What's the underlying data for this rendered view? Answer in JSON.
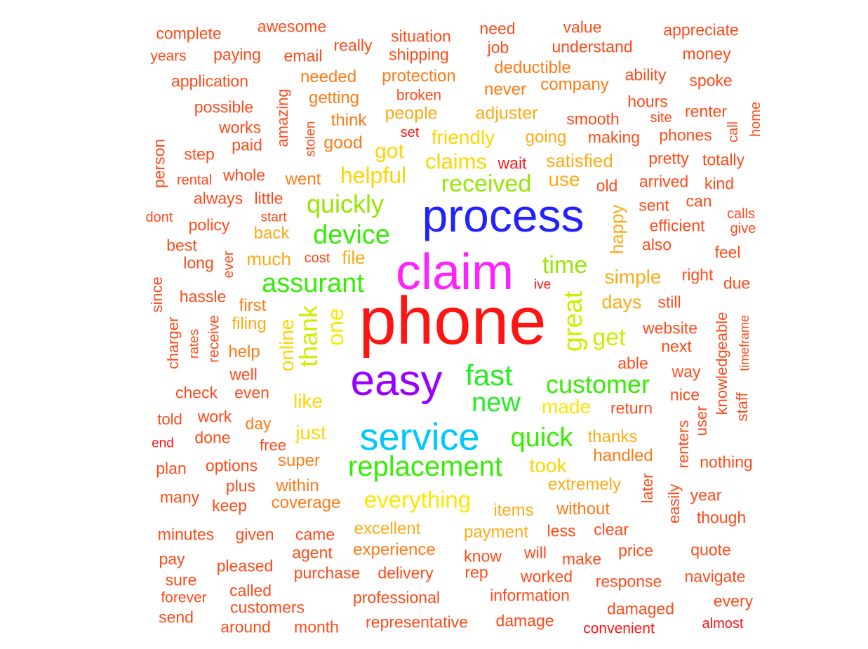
{
  "colors": {
    "red": "#ff1414",
    "red_orange": "#ff4a1a",
    "orange": "#ff7a14",
    "amber": "#ffaa14",
    "yellow": "#ffd400",
    "bright_yellow": "#ffe600",
    "yellow_green": "#ccee00",
    "light_green": "#96e600",
    "green": "#33ee00",
    "green2": "#22ee22",
    "cyan": "#00c8ff",
    "blue": "#2222ff",
    "purple": "#9900ff",
    "magenta": "#ff22ff"
  },
  "words": [
    {
      "text": "phone",
      "color": "red"
    },
    {
      "text": "claim",
      "color": "magenta"
    },
    {
      "text": "process",
      "color": "blue"
    },
    {
      "text": "easy",
      "color": "purple"
    },
    {
      "text": "service",
      "color": "cyan"
    },
    {
      "text": "replacement",
      "color": "green"
    },
    {
      "text": "fast",
      "color": "green2"
    },
    {
      "text": "new",
      "color": "green2"
    },
    {
      "text": "customer",
      "color": "green"
    },
    {
      "text": "quick",
      "color": "green"
    },
    {
      "text": "assurant",
      "color": "green"
    },
    {
      "text": "device",
      "color": "green"
    },
    {
      "text": "quickly",
      "color": "light_green"
    },
    {
      "text": "received",
      "color": "light_green"
    },
    {
      "text": "time",
      "color": "light_green"
    },
    {
      "text": "great",
      "color": "yellow_green"
    },
    {
      "text": "get",
      "color": "yellow_green"
    },
    {
      "text": "thank",
      "color": "yellow_green"
    },
    {
      "text": "one",
      "color": "bright_yellow"
    },
    {
      "text": "helpful",
      "color": "yellow"
    },
    {
      "text": "claims",
      "color": "yellow"
    },
    {
      "text": "everything",
      "color": "bright_yellow"
    },
    {
      "text": "made",
      "color": "bright_yellow"
    },
    {
      "text": "took",
      "color": "yellow"
    },
    {
      "text": "online",
      "color": "yellow"
    },
    {
      "text": "like",
      "color": "yellow"
    },
    {
      "text": "just",
      "color": "yellow"
    },
    {
      "text": "got",
      "color": "yellow"
    },
    {
      "text": "friendly",
      "color": "yellow"
    },
    {
      "text": "satisfied",
      "color": "amber"
    },
    {
      "text": "use",
      "color": "amber"
    },
    {
      "text": "simple",
      "color": "amber"
    },
    {
      "text": "days",
      "color": "amber"
    },
    {
      "text": "happy",
      "color": "amber"
    },
    {
      "text": "much",
      "color": "amber"
    },
    {
      "text": "file",
      "color": "amber"
    },
    {
      "text": "people",
      "color": "amber"
    },
    {
      "text": "adjuster",
      "color": "amber"
    },
    {
      "text": "going",
      "color": "amber"
    },
    {
      "text": "thanks",
      "color": "amber"
    },
    {
      "text": "handled",
      "color": "orange"
    },
    {
      "text": "extremely",
      "color": "amber"
    },
    {
      "text": "items",
      "color": "amber"
    },
    {
      "text": "excellent",
      "color": "amber"
    },
    {
      "text": "payment",
      "color": "amber"
    },
    {
      "text": "super",
      "color": "orange"
    },
    {
      "text": "within",
      "color": "orange"
    },
    {
      "text": "coverage",
      "color": "orange"
    },
    {
      "text": "filing",
      "color": "amber"
    },
    {
      "text": "first",
      "color": "orange"
    },
    {
      "text": "back",
      "color": "amber"
    },
    {
      "text": "went",
      "color": "orange"
    },
    {
      "text": "good",
      "color": "orange"
    },
    {
      "text": "getting",
      "color": "orange"
    },
    {
      "text": "think",
      "color": "orange"
    },
    {
      "text": "needed",
      "color": "orange"
    },
    {
      "text": "protection",
      "color": "orange"
    },
    {
      "text": "never",
      "color": "orange"
    },
    {
      "text": "deductible",
      "color": "orange"
    },
    {
      "text": "company",
      "color": "orange"
    },
    {
      "text": "experience",
      "color": "orange"
    },
    {
      "text": "without",
      "color": "orange"
    },
    {
      "text": "help",
      "color": "orange"
    },
    {
      "text": "amazing",
      "color": "red_orange"
    },
    {
      "text": "complete",
      "color": "red_orange"
    },
    {
      "text": "awesome",
      "color": "red_orange"
    },
    {
      "text": "situation",
      "color": "red_orange"
    },
    {
      "text": "need",
      "color": "red_orange"
    },
    {
      "text": "value",
      "color": "red_orange"
    },
    {
      "text": "appreciate",
      "color": "red_orange"
    },
    {
      "text": "years",
      "color": "red_orange"
    },
    {
      "text": "paying",
      "color": "red_orange"
    },
    {
      "text": "email",
      "color": "red_orange"
    },
    {
      "text": "really",
      "color": "red_orange"
    },
    {
      "text": "shipping",
      "color": "red_orange"
    },
    {
      "text": "job",
      "color": "red_orange"
    },
    {
      "text": "understand",
      "color": "red_orange"
    },
    {
      "text": "money",
      "color": "red_orange"
    },
    {
      "text": "application",
      "color": "red_orange"
    },
    {
      "text": "ability",
      "color": "red_orange"
    },
    {
      "text": "spoke",
      "color": "red_orange"
    },
    {
      "text": "broken",
      "color": "red_orange"
    },
    {
      "text": "possible",
      "color": "red_orange"
    },
    {
      "text": "hours",
      "color": "red_orange"
    },
    {
      "text": "renter",
      "color": "red_orange"
    },
    {
      "text": "home",
      "color": "red_orange"
    },
    {
      "text": "works",
      "color": "red_orange"
    },
    {
      "text": "smooth",
      "color": "red_orange"
    },
    {
      "text": "site",
      "color": "red_orange"
    },
    {
      "text": "call",
      "color": "red_orange"
    },
    {
      "text": "person",
      "color": "red_orange"
    },
    {
      "text": "paid",
      "color": "red_orange"
    },
    {
      "text": "stolen",
      "color": "red_orange"
    },
    {
      "text": "set",
      "color": "red"
    },
    {
      "text": "making",
      "color": "red_orange"
    },
    {
      "text": "phones",
      "color": "red_orange"
    },
    {
      "text": "step",
      "color": "red_orange"
    },
    {
      "text": "wait",
      "color": "red"
    },
    {
      "text": "pretty",
      "color": "red_orange"
    },
    {
      "text": "totally",
      "color": "red_orange"
    },
    {
      "text": "rental",
      "color": "red_orange"
    },
    {
      "text": "whole",
      "color": "red_orange"
    },
    {
      "text": "old",
      "color": "red_orange"
    },
    {
      "text": "arrived",
      "color": "red_orange"
    },
    {
      "text": "kind",
      "color": "red_orange"
    },
    {
      "text": "always",
      "color": "red_orange"
    },
    {
      "text": "little",
      "color": "red_orange"
    },
    {
      "text": "sent",
      "color": "red_orange"
    },
    {
      "text": "can",
      "color": "red_orange"
    },
    {
      "text": "dont",
      "color": "red_orange"
    },
    {
      "text": "start",
      "color": "red_orange"
    },
    {
      "text": "calls",
      "color": "red_orange"
    },
    {
      "text": "give",
      "color": "red_orange"
    },
    {
      "text": "policy",
      "color": "red_orange"
    },
    {
      "text": "efficient",
      "color": "red_orange"
    },
    {
      "text": "best",
      "color": "red_orange"
    },
    {
      "text": "also",
      "color": "red_orange"
    },
    {
      "text": "long",
      "color": "red_orange"
    },
    {
      "text": "ever",
      "color": "red_orange"
    },
    {
      "text": "cost",
      "color": "red_orange"
    },
    {
      "text": "feel",
      "color": "red_orange"
    },
    {
      "text": "right",
      "color": "red_orange"
    },
    {
      "text": "ive",
      "color": "red"
    },
    {
      "text": "since",
      "color": "red_orange"
    },
    {
      "text": "hassle",
      "color": "red_orange"
    },
    {
      "text": "due",
      "color": "red_orange"
    },
    {
      "text": "still",
      "color": "red_orange"
    },
    {
      "text": "receive",
      "color": "red_orange"
    },
    {
      "text": "timeframe",
      "color": "red_orange"
    },
    {
      "text": "knowledgeable",
      "color": "red_orange"
    },
    {
      "text": "charger",
      "color": "red_orange"
    },
    {
      "text": "rates",
      "color": "red_orange"
    },
    {
      "text": "website",
      "color": "red_orange"
    },
    {
      "text": "next",
      "color": "red_orange"
    },
    {
      "text": "well",
      "color": "red_orange"
    },
    {
      "text": "able",
      "color": "red_orange"
    },
    {
      "text": "way",
      "color": "red_orange"
    },
    {
      "text": "staff",
      "color": "red_orange"
    },
    {
      "text": "check",
      "color": "red_orange"
    },
    {
      "text": "even",
      "color": "red_orange"
    },
    {
      "text": "nice",
      "color": "red_orange"
    },
    {
      "text": "return",
      "color": "red_orange"
    },
    {
      "text": "told",
      "color": "red_orange"
    },
    {
      "text": "work",
      "color": "red_orange"
    },
    {
      "text": "day",
      "color": "orange"
    },
    {
      "text": "user",
      "color": "red_orange"
    },
    {
      "text": "end",
      "color": "red"
    },
    {
      "text": "done",
      "color": "red_orange"
    },
    {
      "text": "free",
      "color": "red_orange"
    },
    {
      "text": "renters",
      "color": "red_orange"
    },
    {
      "text": "plan",
      "color": "red_orange"
    },
    {
      "text": "options",
      "color": "red_orange"
    },
    {
      "text": "nothing",
      "color": "red_orange"
    },
    {
      "text": "many",
      "color": "red_orange"
    },
    {
      "text": "plus",
      "color": "red_orange"
    },
    {
      "text": "later",
      "color": "red_orange"
    },
    {
      "text": "keep",
      "color": "red_orange"
    },
    {
      "text": "easily",
      "color": "red_orange"
    },
    {
      "text": "year",
      "color": "red_orange"
    },
    {
      "text": "though",
      "color": "red_orange"
    },
    {
      "text": "minutes",
      "color": "red_orange"
    },
    {
      "text": "given",
      "color": "red_orange"
    },
    {
      "text": "came",
      "color": "red_orange"
    },
    {
      "text": "less",
      "color": "red_orange"
    },
    {
      "text": "clear",
      "color": "red_orange"
    },
    {
      "text": "agent",
      "color": "red_orange"
    },
    {
      "text": "will",
      "color": "red_orange"
    },
    {
      "text": "price",
      "color": "red_orange"
    },
    {
      "text": "quote",
      "color": "red_orange"
    },
    {
      "text": "pay",
      "color": "red_orange"
    },
    {
      "text": "know",
      "color": "red_orange"
    },
    {
      "text": "make",
      "color": "red_orange"
    },
    {
      "text": "pleased",
      "color": "red_orange"
    },
    {
      "text": "purchase",
      "color": "red_orange"
    },
    {
      "text": "delivery",
      "color": "red_orange"
    },
    {
      "text": "rep",
      "color": "red_orange"
    },
    {
      "text": "worked",
      "color": "red_orange"
    },
    {
      "text": "response",
      "color": "red_orange"
    },
    {
      "text": "navigate",
      "color": "red_orange"
    },
    {
      "text": "sure",
      "color": "red_orange"
    },
    {
      "text": "called",
      "color": "red_orange"
    },
    {
      "text": "forever",
      "color": "red_orange"
    },
    {
      "text": "professional",
      "color": "red_orange"
    },
    {
      "text": "information",
      "color": "red_orange"
    },
    {
      "text": "every",
      "color": "red_orange"
    },
    {
      "text": "customers",
      "color": "red_orange"
    },
    {
      "text": "damaged",
      "color": "red_orange"
    },
    {
      "text": "send",
      "color": "red_orange"
    },
    {
      "text": "around",
      "color": "red_orange"
    },
    {
      "text": "month",
      "color": "red_orange"
    },
    {
      "text": "representative",
      "color": "red_orange"
    },
    {
      "text": "damage",
      "color": "red_orange"
    },
    {
      "text": "convenient",
      "color": "red"
    },
    {
      "text": "almost",
      "color": "red"
    }
  ]
}
